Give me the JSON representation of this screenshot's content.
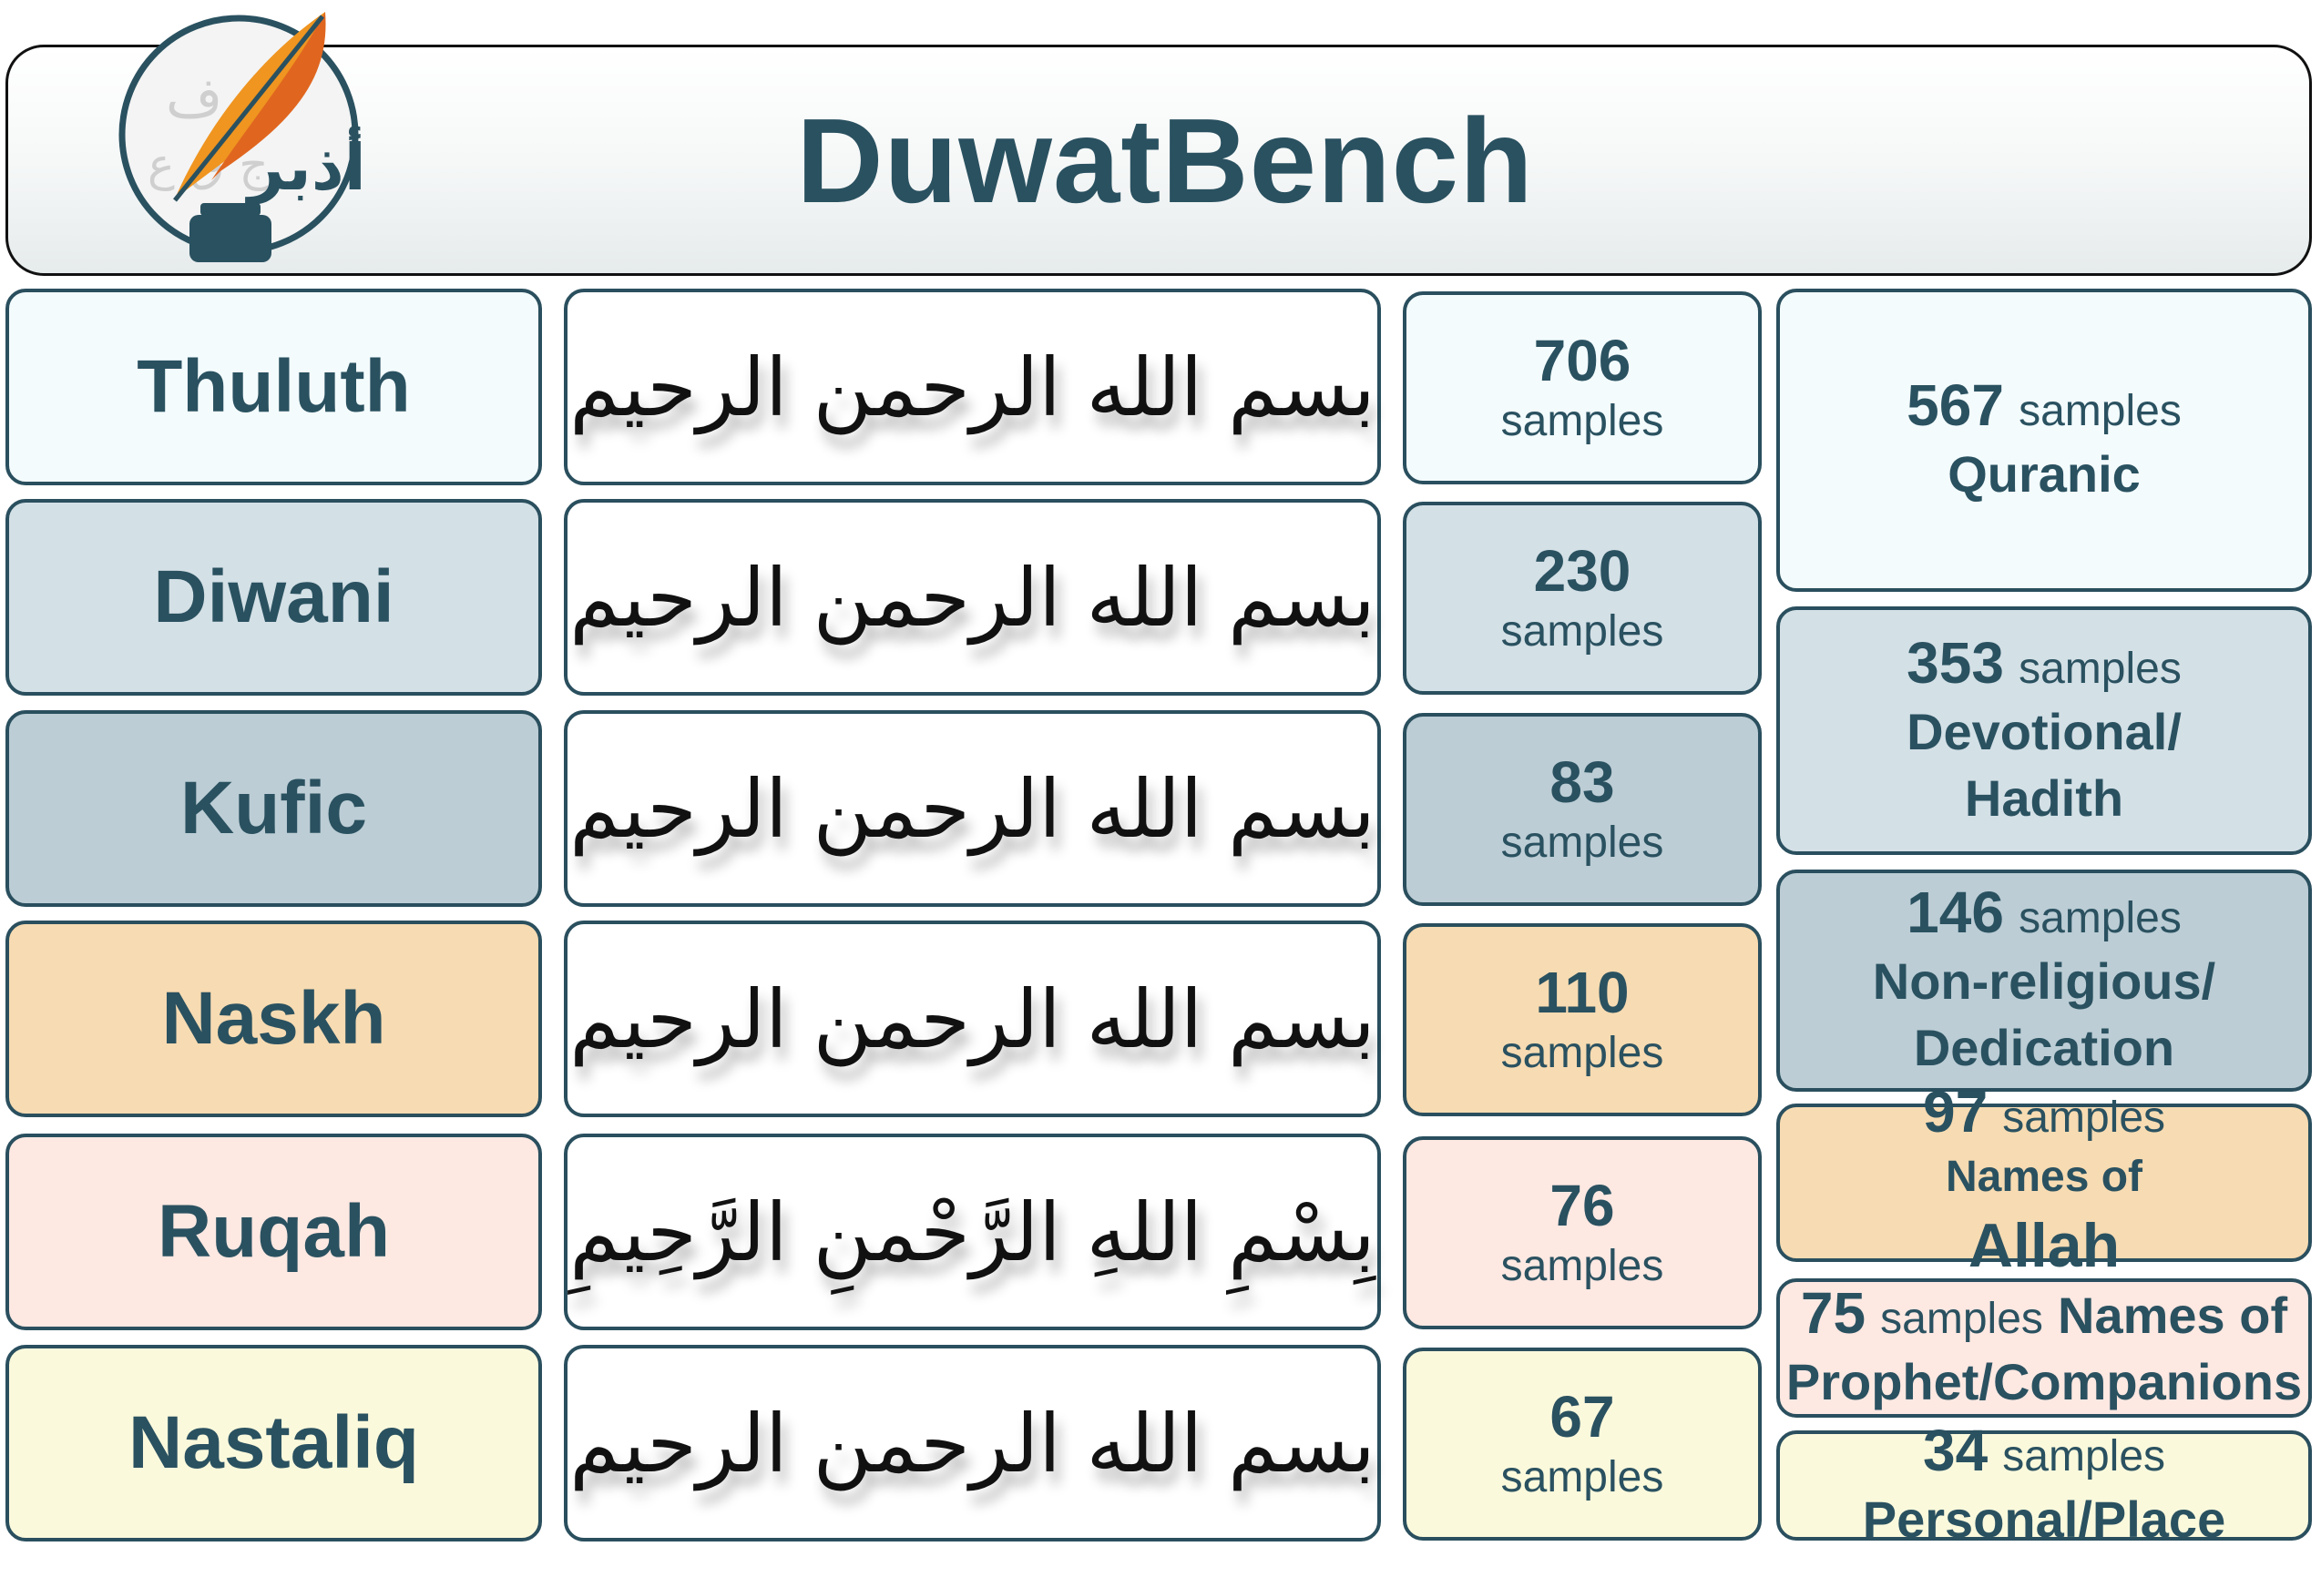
{
  "header": {
    "title": "DuwatBench",
    "logo": "duwatbench-quill-ink-logo"
  },
  "styles": [
    {
      "name": "Thuluth",
      "samples": "706",
      "samples_label": "samples",
      "calligraphy": "بسم الله الرحمن الرحيم",
      "color": "#f3fbfd"
    },
    {
      "name": "Diwani",
      "samples": "230",
      "samples_label": "samples",
      "calligraphy": "بسم الله الرحمن الرحيم",
      "color": "#d3e0e6"
    },
    {
      "name": "Kufic",
      "samples": "83",
      "samples_label": "samples",
      "calligraphy": "بسم الله الرحمن الرحيم",
      "color": "#bccdd5"
    },
    {
      "name": "Naskh",
      "samples": "110",
      "samples_label": "samples",
      "calligraphy": "بسم الله الرحمن الرحيم",
      "color": "#f7dbb2"
    },
    {
      "name": "Ruqah",
      "samples": "76",
      "samples_label": "samples",
      "calligraphy": "بِسْمِ اللهِ الرَّحْمنِ الرَّحِيمِ",
      "color": "#fde8e2"
    },
    {
      "name": "Nastaliq",
      "samples": "67",
      "samples_label": "samples",
      "calligraphy": "بسم الله الرحمن الرحیم",
      "color": "#fbf9dc"
    }
  ],
  "categories": [
    {
      "count": "567",
      "samples_label": "samples",
      "line1": "Quranic",
      "line2": "",
      "color": "#f3fbfd"
    },
    {
      "count": "353",
      "samples_label": "samples",
      "line1": "Devotional/",
      "line2": "Hadith",
      "color": "#d3e0e6"
    },
    {
      "count": "146",
      "samples_label": "samples",
      "line1": "Non-religious/",
      "line2": "Dedication",
      "color": "#bccdd5"
    },
    {
      "count": "97",
      "samples_label": "samples",
      "line1": "Names of",
      "line2": "Allah",
      "color": "#f7dbb2"
    },
    {
      "count": "75",
      "samples_label": "samples",
      "line1": "Names of",
      "line2": "Prophet/Companions",
      "color": "#fde8e2"
    },
    {
      "count": "34",
      "samples_label": "samples",
      "line1": "Personal/Place",
      "line2": "",
      "color": "#fbf9dc"
    }
  ]
}
